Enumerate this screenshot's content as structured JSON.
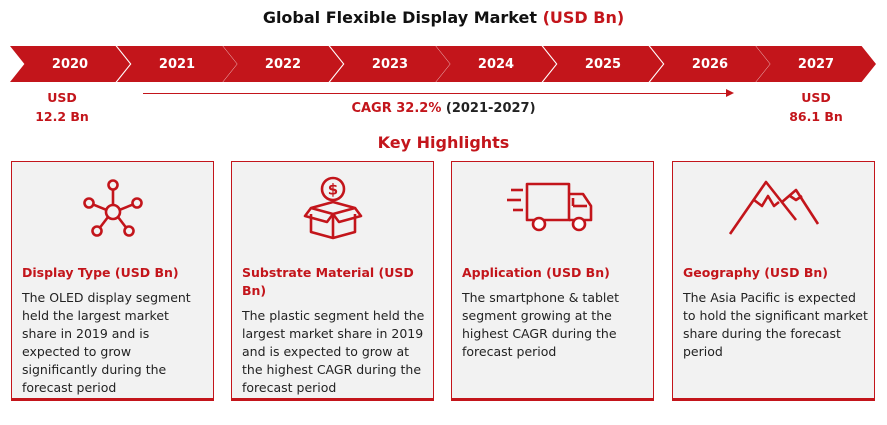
{
  "header": {
    "title_main": "Global Flexible Display Market",
    "title_accent": "(USD Bn)"
  },
  "timeline": {
    "years": [
      "2020",
      "2021",
      "2022",
      "2023",
      "2024",
      "2025",
      "2026",
      "2027"
    ],
    "start_value": {
      "line1": "USD",
      "line2": "12.2 Bn"
    },
    "end_value": {
      "line1": "USD",
      "line2": "86.1 Bn"
    },
    "cagr_label": "CAGR 32.2%",
    "cagr_period": "(2021-2027)"
  },
  "highlights": {
    "heading": "Key Highlights",
    "cards": [
      {
        "icon": "network-icon",
        "title": "Display Type (USD Bn)",
        "body": "The OLED display segment held the largest market share in 2019 and is expected to grow significantly during the forecast period"
      },
      {
        "icon": "money-box-icon",
        "title": "Substrate Material (USD Bn)",
        "body": "The plastic segment held the largest market share in 2019 and is expected to grow at the highest CAGR during the forecast period"
      },
      {
        "icon": "delivery-truck-icon",
        "title": "Application (USD Bn)",
        "body": "The smartphone & tablet segment growing at the highest CAGR during the forecast period"
      },
      {
        "icon": "mountain-icon",
        "title": "Geography (USD Bn)",
        "body": "The Asia Pacific is expected to hold the significant market share during the forecast period"
      }
    ]
  },
  "colors": {
    "accent": "#c3151b",
    "card_bg": "#f2f2f2"
  }
}
